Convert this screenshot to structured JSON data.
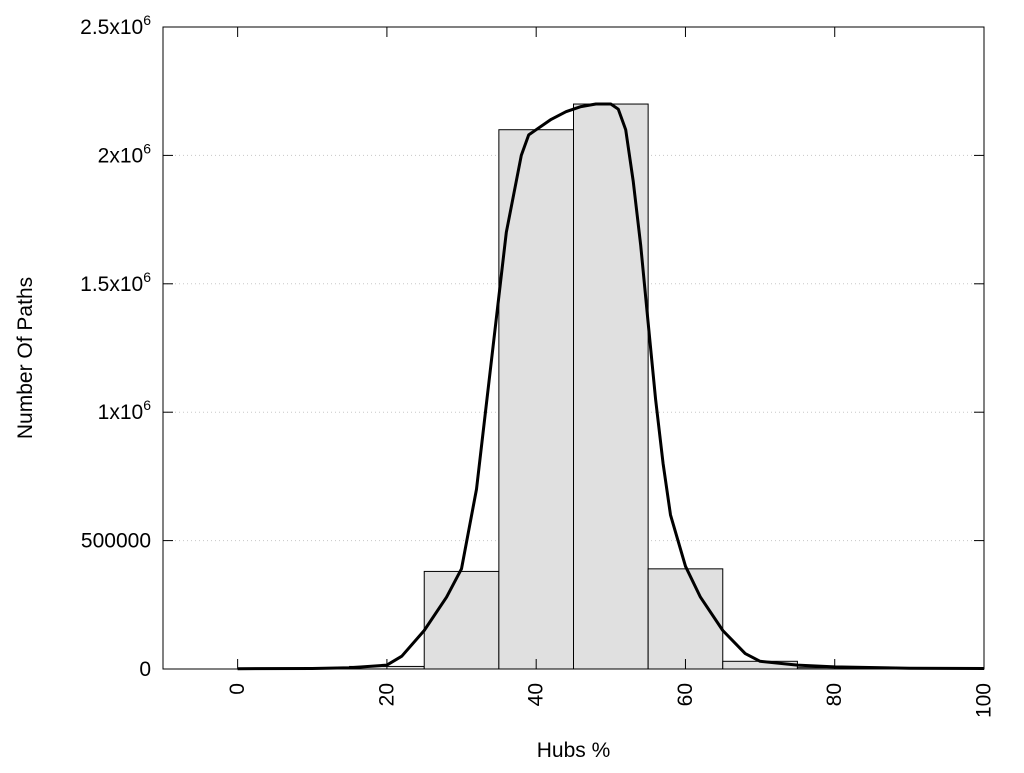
{
  "chart_data": {
    "type": "bar",
    "xlabel": "Hubs %",
    "ylabel": "Number Of Paths",
    "xlim": [
      -10,
      100
    ],
    "ylim": [
      0,
      2500000
    ],
    "grid": "horizontal dotted",
    "x_ticks": [
      {
        "value": 0,
        "label": "0"
      },
      {
        "value": 20,
        "label": "20"
      },
      {
        "value": 40,
        "label": "40"
      },
      {
        "value": 60,
        "label": "60"
      },
      {
        "value": 80,
        "label": "80"
      },
      {
        "value": 100,
        "label": "100"
      }
    ],
    "y_ticks": [
      {
        "value": 0,
        "base": "0",
        "exp": ""
      },
      {
        "value": 500000,
        "base": "500000",
        "exp": ""
      },
      {
        "value": 1000000,
        "base": "1x10",
        "exp": "6"
      },
      {
        "value": 1500000,
        "base": "1.5x10",
        "exp": "6"
      },
      {
        "value": 2000000,
        "base": "2x10",
        "exp": "6"
      },
      {
        "value": 2500000,
        "base": "2.5x10",
        "exp": "6"
      }
    ],
    "bar_width": 10,
    "bars": [
      {
        "x": 0,
        "value": 0
      },
      {
        "x": 10,
        "value": 0
      },
      {
        "x": 20,
        "value": 10000
      },
      {
        "x": 30,
        "value": 380000
      },
      {
        "x": 40,
        "value": 2100000
      },
      {
        "x": 50,
        "value": 2200000
      },
      {
        "x": 60,
        "value": 390000
      },
      {
        "x": 70,
        "value": 30000
      },
      {
        "x": 80,
        "value": 5000
      },
      {
        "x": 90,
        "value": 2000
      }
    ],
    "bar_color": "#e0e0e0",
    "curve": {
      "type": "line",
      "color": "#000000",
      "x": [
        0,
        10,
        15,
        20,
        22,
        25,
        28,
        30,
        32,
        34,
        36,
        38,
        39,
        40,
        42,
        44,
        46,
        48,
        50,
        51,
        52,
        53,
        54,
        55,
        56,
        57,
        58,
        60,
        62,
        65,
        68,
        70,
        75,
        80,
        90,
        100
      ],
      "y": [
        1000,
        2000,
        5000,
        15000,
        50000,
        150000,
        280000,
        390000,
        700000,
        1200000,
        1700000,
        2000000,
        2080000,
        2100000,
        2140000,
        2170000,
        2190000,
        2200000,
        2200000,
        2180000,
        2100000,
        1900000,
        1650000,
        1350000,
        1050000,
        800000,
        600000,
        400000,
        280000,
        150000,
        60000,
        30000,
        15000,
        8000,
        3000,
        2000
      ]
    }
  }
}
